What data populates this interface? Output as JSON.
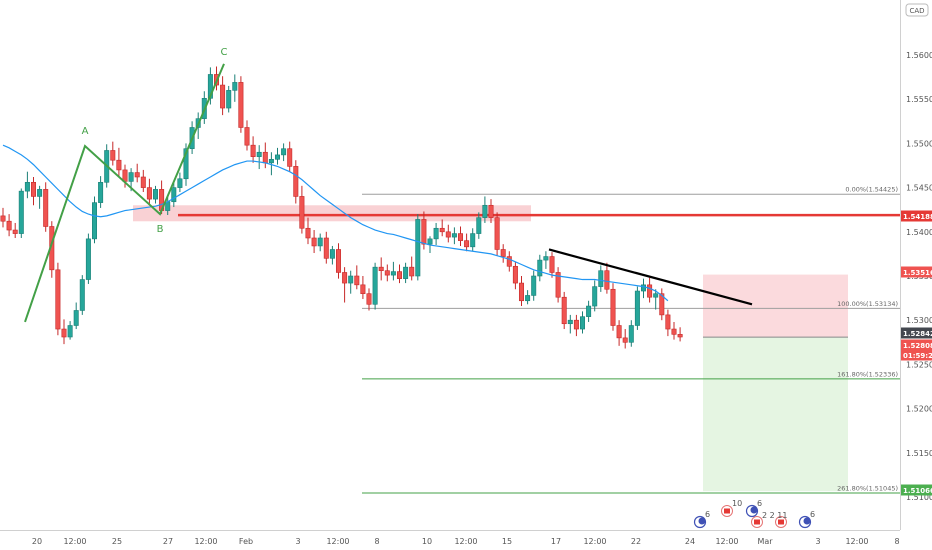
{
  "chart_data": {
    "type": "candlestick",
    "currency": "CAD",
    "y_ticks": [
      "1.56000",
      "1.55500",
      "1.55000",
      "1.54500",
      "1.54000",
      "1.53500",
      "1.53000",
      "1.52500",
      "1.52000",
      "1.51500",
      "1.51000"
    ],
    "x_ticks": [
      "20",
      "12:00",
      "25",
      "27",
      "12:00",
      "Feb",
      "3",
      "12:00",
      "8",
      "10",
      "12:00",
      "15",
      "17",
      "12:00",
      "22",
      "24",
      "12:00",
      "Mar",
      "3",
      "12:00",
      "8"
    ],
    "ylim": [
      1.5075,
      1.5647
    ],
    "candles": [
      [
        1.5418,
        1.5427,
        1.5405,
        1.5412
      ],
      [
        1.5412,
        1.542,
        1.5395,
        1.5402
      ],
      [
        1.5402,
        1.541,
        1.5393,
        1.5398
      ],
      [
        1.5398,
        1.5449,
        1.5393,
        1.5446
      ],
      [
        1.5446,
        1.5468,
        1.5438,
        1.5456
      ],
      [
        1.5456,
        1.5462,
        1.543,
        1.544
      ],
      [
        1.544,
        1.5452,
        1.5426,
        1.5448
      ],
      [
        1.5448,
        1.5456,
        1.54,
        1.5406
      ],
      [
        1.5406,
        1.5412,
        1.5348,
        1.5357
      ],
      [
        1.5357,
        1.5365,
        1.5283,
        1.529
      ],
      [
        1.529,
        1.5301,
        1.5273,
        1.5281
      ],
      [
        1.5281,
        1.5299,
        1.5278,
        1.5294
      ],
      [
        1.5294,
        1.532,
        1.529,
        1.5311
      ],
      [
        1.5311,
        1.5351,
        1.5306,
        1.5346
      ],
      [
        1.5346,
        1.5398,
        1.5341,
        1.5392
      ],
      [
        1.5392,
        1.544,
        1.5387,
        1.5433
      ],
      [
        1.5433,
        1.5463,
        1.5427,
        1.5456
      ],
      [
        1.5456,
        1.5499,
        1.545,
        1.5492
      ],
      [
        1.5492,
        1.5502,
        1.5475,
        1.5481
      ],
      [
        1.5481,
        1.5495,
        1.5462,
        1.547
      ],
      [
        1.547,
        1.5476,
        1.545,
        1.5457
      ],
      [
        1.5457,
        1.5472,
        1.5446,
        1.5467
      ],
      [
        1.5467,
        1.5477,
        1.5456,
        1.5462
      ],
      [
        1.5462,
        1.547,
        1.5445,
        1.545
      ],
      [
        1.545,
        1.546,
        1.543,
        1.5437
      ],
      [
        1.5437,
        1.5452,
        1.5432,
        1.5448
      ],
      [
        1.5448,
        1.5458,
        1.542,
        1.5424
      ],
      [
        1.5424,
        1.544,
        1.5419,
        1.5434
      ],
      [
        1.5434,
        1.5455,
        1.5428,
        1.545
      ],
      [
        1.545,
        1.5467,
        1.5445,
        1.546
      ],
      [
        1.546,
        1.55,
        1.5452,
        1.5494
      ],
      [
        1.5494,
        1.5525,
        1.5488,
        1.5518
      ],
      [
        1.5518,
        1.5535,
        1.5505,
        1.5528
      ],
      [
        1.5528,
        1.5559,
        1.5522,
        1.5551
      ],
      [
        1.5551,
        1.5586,
        1.5544,
        1.5578
      ],
      [
        1.5578,
        1.5587,
        1.556,
        1.5566
      ],
      [
        1.5566,
        1.5576,
        1.5532,
        1.554
      ],
      [
        1.554,
        1.5565,
        1.5535,
        1.556
      ],
      [
        1.556,
        1.5578,
        1.5547,
        1.5569
      ],
      [
        1.5569,
        1.5576,
        1.5512,
        1.5518
      ],
      [
        1.5518,
        1.5526,
        1.5492,
        1.5498
      ],
      [
        1.5498,
        1.5508,
        1.5478,
        1.5485
      ],
      [
        1.5485,
        1.5498,
        1.5471,
        1.549
      ],
      [
        1.549,
        1.5501,
        1.5472,
        1.5478
      ],
      [
        1.5478,
        1.549,
        1.5464,
        1.5482
      ],
      [
        1.5482,
        1.5495,
        1.5476,
        1.5487
      ],
      [
        1.5487,
        1.55,
        1.548,
        1.5494
      ],
      [
        1.5494,
        1.5502,
        1.5468,
        1.5474
      ],
      [
        1.5474,
        1.5481,
        1.5432,
        1.544
      ],
      [
        1.544,
        1.5452,
        1.5398,
        1.5404
      ],
      [
        1.5404,
        1.5416,
        1.5386,
        1.5393
      ],
      [
        1.5393,
        1.5402,
        1.5376,
        1.5384
      ],
      [
        1.5384,
        1.5398,
        1.5378,
        1.5393
      ],
      [
        1.5393,
        1.54,
        1.5364,
        1.537
      ],
      [
        1.537,
        1.5384,
        1.5363,
        1.538
      ],
      [
        1.538,
        1.5387,
        1.5347,
        1.5354
      ],
      [
        1.5354,
        1.536,
        1.532,
        1.5342
      ],
      [
        1.5342,
        1.5356,
        1.533,
        1.535
      ],
      [
        1.535,
        1.5362,
        1.5335,
        1.534
      ],
      [
        1.534,
        1.535,
        1.5324,
        1.533
      ],
      [
        1.533,
        1.5336,
        1.5311,
        1.5318
      ],
      [
        1.5318,
        1.5365,
        1.5312,
        1.536
      ],
      [
        1.536,
        1.5371,
        1.5345,
        1.5356
      ],
      [
        1.5356,
        1.5363,
        1.5344,
        1.5351
      ],
      [
        1.5351,
        1.5366,
        1.5345,
        1.5355
      ],
      [
        1.5355,
        1.5363,
        1.5342,
        1.5347
      ],
      [
        1.5347,
        1.5365,
        1.5342,
        1.536
      ],
      [
        1.536,
        1.5372,
        1.5345,
        1.535
      ],
      [
        1.535,
        1.542,
        1.5345,
        1.5414
      ],
      [
        1.5414,
        1.5423,
        1.538,
        1.5386
      ],
      [
        1.5386,
        1.5395,
        1.5376,
        1.5392
      ],
      [
        1.5392,
        1.541,
        1.5385,
        1.5404
      ],
      [
        1.5404,
        1.5414,
        1.5395,
        1.54
      ],
      [
        1.54,
        1.5408,
        1.5388,
        1.5394
      ],
      [
        1.5394,
        1.5405,
        1.5386,
        1.5398
      ],
      [
        1.5398,
        1.5406,
        1.5384,
        1.539
      ],
      [
        1.539,
        1.5398,
        1.5378,
        1.5383
      ],
      [
        1.5383,
        1.5404,
        1.5378,
        1.5398
      ],
      [
        1.5398,
        1.5422,
        1.5392,
        1.5416
      ],
      [
        1.5416,
        1.544,
        1.541,
        1.543
      ],
      [
        1.543,
        1.5437,
        1.541,
        1.5416
      ],
      [
        1.5416,
        1.5422,
        1.5373,
        1.538
      ],
      [
        1.538,
        1.5386,
        1.5365,
        1.5372
      ],
      [
        1.5372,
        1.5378,
        1.5355,
        1.5361
      ],
      [
        1.5361,
        1.5366,
        1.5335,
        1.5342
      ],
      [
        1.5342,
        1.535,
        1.5316,
        1.5322
      ],
      [
        1.5322,
        1.5334,
        1.5318,
        1.5328
      ],
      [
        1.5328,
        1.5356,
        1.5322,
        1.535
      ],
      [
        1.535,
        1.5374,
        1.5344,
        1.5368
      ],
      [
        1.5368,
        1.5378,
        1.5358,
        1.5372
      ],
      [
        1.5372,
        1.5377,
        1.5348,
        1.5354
      ],
      [
        1.5354,
        1.536,
        1.532,
        1.5326
      ],
      [
        1.5326,
        1.5332,
        1.529,
        1.5296
      ],
      [
        1.5296,
        1.5306,
        1.5285,
        1.53
      ],
      [
        1.53,
        1.5306,
        1.5282,
        1.529
      ],
      [
        1.529,
        1.531,
        1.5285,
        1.5304
      ],
      [
        1.5304,
        1.5322,
        1.5298,
        1.5316
      ],
      [
        1.5316,
        1.5345,
        1.531,
        1.5338
      ],
      [
        1.5338,
        1.5362,
        1.5332,
        1.5356
      ],
      [
        1.5356,
        1.5365,
        1.533,
        1.5335
      ],
      [
        1.5335,
        1.5342,
        1.5288,
        1.5294
      ],
      [
        1.5294,
        1.53,
        1.5271,
        1.528
      ],
      [
        1.528,
        1.529,
        1.5268,
        1.5275
      ],
      [
        1.5275,
        1.53,
        1.527,
        1.5294
      ],
      [
        1.5294,
        1.5338,
        1.5289,
        1.5333
      ],
      [
        1.5333,
        1.5347,
        1.5325,
        1.534
      ],
      [
        1.534,
        1.5348,
        1.532,
        1.5326
      ],
      [
        1.5326,
        1.5335,
        1.5312,
        1.533
      ],
      [
        1.533,
        1.5336,
        1.53,
        1.5306
      ],
      [
        1.5306,
        1.5312,
        1.5282,
        1.529
      ],
      [
        1.529,
        1.5298,
        1.5278,
        1.5284
      ],
      [
        1.5284,
        1.5292,
        1.5276,
        1.5281
      ]
    ],
    "moving_average": [
      1.5498,
      1.5495,
      1.5491,
      1.5487,
      1.5482,
      1.5476,
      1.5469,
      1.5462,
      1.5455,
      1.5448,
      1.5441,
      1.5434,
      1.5428,
      1.5423,
      1.542,
      1.5418,
      1.5417,
      1.5418,
      1.542,
      1.5422,
      1.5424,
      1.5425,
      1.5426,
      1.5427,
      1.5428,
      1.5429,
      1.5431,
      1.5434,
      1.5438,
      1.5442,
      1.5446,
      1.545,
      1.5454,
      1.5458,
      1.5462,
      1.5466,
      1.547,
      1.5473,
      1.5476,
      1.5478,
      1.548,
      1.548,
      1.5479,
      1.5478,
      1.5476,
      1.5474,
      1.5471,
      1.5468,
      1.5464,
      1.5459,
      1.5453,
      1.5447,
      1.5441,
      1.5436,
      1.5431,
      1.5426,
      1.5421,
      1.5416,
      1.5412,
      1.5408,
      1.5405,
      1.5402,
      1.54,
      1.5398,
      1.5397,
      1.5395,
      1.5393,
      1.5391,
      1.5389,
      1.5387,
      1.5385,
      1.5384,
      1.5383,
      1.5382,
      1.5381,
      1.538,
      1.5379,
      1.5378,
      1.5377,
      1.5376,
      1.5375,
      1.5373,
      1.5371,
      1.5369,
      1.5366,
      1.5363,
      1.536,
      1.5357,
      1.5355,
      1.5353,
      1.5351,
      1.535,
      1.5349,
      1.5348,
      1.5347,
      1.5346,
      1.5346,
      1.5346,
      1.5345,
      1.5344,
      1.5343,
      1.5342,
      1.5341,
      1.534,
      1.5339,
      1.5338,
      1.5336,
      1.5333,
      1.5328,
      1.5322
    ],
    "abc_pattern": {
      "labels": [
        "A",
        "B",
        "C"
      ],
      "points": [
        [
          1.5298,
          null
        ],
        [
          1.5497,
          "A"
        ],
        [
          1.542,
          "B"
        ],
        [
          1.559,
          "C"
        ]
      ]
    },
    "fib_labels": [
      "0.00%(1.54425)",
      "100.00%(1.53134)",
      "161.80%(1.52336)",
      "261.80%(1.51045)"
    ],
    "fib_levels": [
      1.54425,
      1.53134,
      1.52336,
      1.51045
    ],
    "horizontal_line": 1.54188,
    "resistance_zone": [
      1.54198,
      1.543
    ],
    "trendline": [
      [
        1.538
      ],
      [
        1.5318
      ]
    ],
    "position": {
      "entry": 1.52808,
      "stop": 1.53516,
      "target": 1.51066
    },
    "price_tags": [
      {
        "text": "1.54188",
        "value": 1.54188,
        "color": "#e53935"
      },
      {
        "text": "1.53516",
        "value": 1.53516,
        "color": "#ef5350"
      },
      {
        "text": "1.52842",
        "value": 1.52842,
        "color": "#43474f"
      },
      {
        "text": "1.52808",
        "value": 1.52808,
        "color": "#ef5350"
      },
      {
        "text": "01:59:29",
        "value": 1.5272,
        "color": "#ef5350"
      },
      {
        "text": "1.51066",
        "value": 1.51066,
        "color": "#4caf50"
      }
    ],
    "colors": {
      "up_fill": "#26a69a",
      "up_border": "#1b7f76",
      "down_fill": "#ef5350",
      "down_border": "#c62828",
      "ma": "#2196f3",
      "abc": "#43a047",
      "fib_line": "#9e9e9e",
      "green_level": "#43a047",
      "red_line": "#e53935",
      "trendline": "#000000",
      "stop_zone": "#fbdadd",
      "target_zone": "#e5f5e2"
    },
    "event_badges": [
      "6",
      "10",
      "6",
      "2 2 11",
      "6"
    ]
  }
}
